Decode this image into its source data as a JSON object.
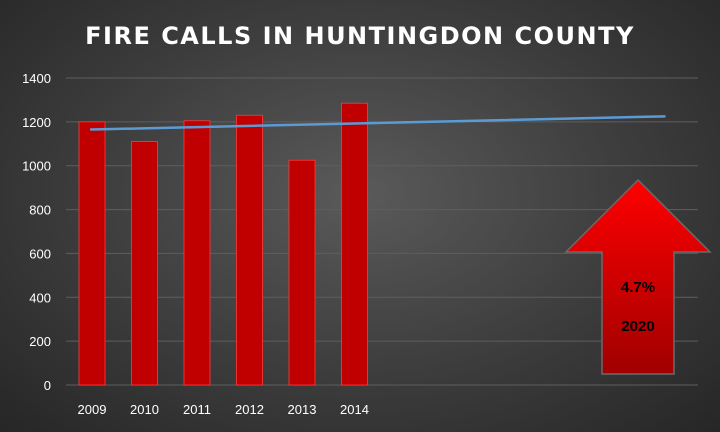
{
  "chart_data": {
    "type": "bar",
    "title": "FIRE CALLS  IN HUNTINGDON  COUNTY",
    "categories": [
      "2009",
      "2010",
      "2011",
      "2012",
      "2013",
      "2014"
    ],
    "values": [
      1200,
      1110,
      1205,
      1230,
      1025,
      1285
    ],
    "ylim": [
      0,
      1400
    ],
    "yticks": [
      0,
      200,
      400,
      600,
      800,
      1000,
      1200,
      1400
    ],
    "grid": true,
    "legend": "none",
    "trendline": {
      "start_value": 1165,
      "end_value": 1225
    },
    "annotation": {
      "shape": "up-arrow",
      "lines": [
        "4.7%",
        "2020"
      ]
    },
    "colors": {
      "bar": "#c00000",
      "bar_outline": "#ff3a3a",
      "trendline": "#5b9bd5",
      "grid": "#5e5e5e",
      "arrow_top": "#ff0000",
      "arrow_bottom": "#a00000"
    }
  }
}
